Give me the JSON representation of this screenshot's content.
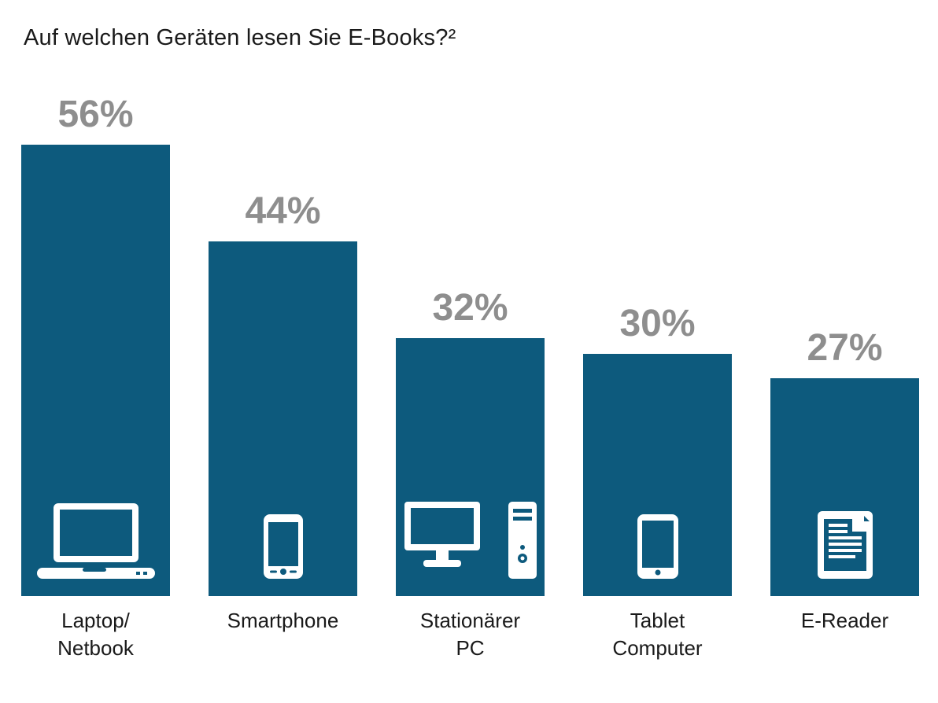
{
  "title": "Auf welchen Geräten lesen Sie E-Books?²",
  "chart_data": {
    "type": "bar",
    "title": "Auf welchen Geräten lesen Sie E-Books?",
    "footnote_marker": "2",
    "unit": "%",
    "ylim": [
      0,
      60
    ],
    "grid": false,
    "legend": "none",
    "categories": [
      "Laptop/Netbook",
      "Smartphone",
      "Stationärer PC",
      "Tablet Computer",
      "E-Reader"
    ],
    "values": [
      56,
      44,
      32,
      30,
      27
    ],
    "bar_color": "#0d5a7d",
    "value_label_color": "#8e8e8e",
    "bars": [
      {
        "value": 56,
        "display": "56%",
        "label": "Laptop/\nNetbook",
        "icon": "laptop-icon"
      },
      {
        "value": 44,
        "display": "44%",
        "label": "Smartphone",
        "icon": "smartphone-icon"
      },
      {
        "value": 32,
        "display": "32%",
        "label": "Stationärer\nPC",
        "icon": "desktop-pc-icon"
      },
      {
        "value": 30,
        "display": "30%",
        "label": "Tablet\nComputer",
        "icon": "tablet-icon"
      },
      {
        "value": 27,
        "display": "27%",
        "label": "E-Reader",
        "icon": "e-reader-icon"
      }
    ]
  }
}
